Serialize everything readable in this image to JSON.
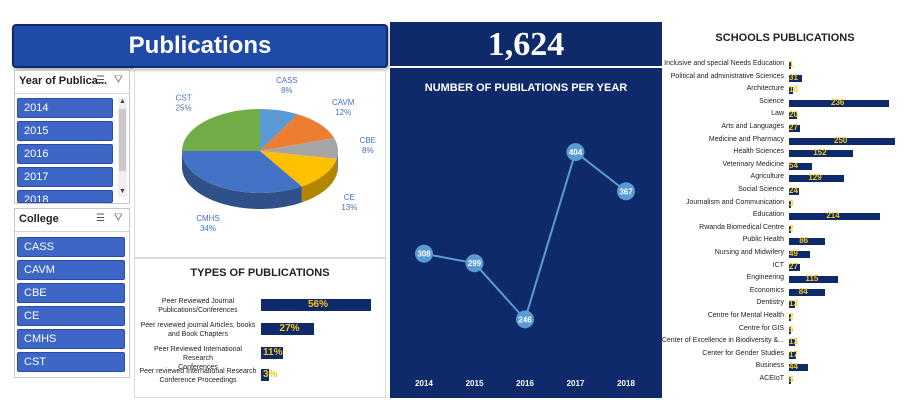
{
  "header": {
    "title": "Publications",
    "total_publications": "1,624"
  },
  "slicers": {
    "year": {
      "title": "Year of Publica...",
      "items": [
        "2014",
        "2015",
        "2016",
        "2017",
        "2018"
      ]
    },
    "college": {
      "title": "College",
      "items": [
        "CASS",
        "CAVM",
        "CBE",
        "CE",
        "CMHS",
        "CST"
      ]
    }
  },
  "pie_chart": {
    "type": "pie",
    "slices": [
      {
        "name": "CASS",
        "pct": 8,
        "label": "8%",
        "color": "#5b9bd5"
      },
      {
        "name": "CAVM",
        "pct": 12,
        "label": "12%",
        "color": "#ed7d31"
      },
      {
        "name": "CBE",
        "pct": 8,
        "label": "8%",
        "color": "#a5a5a5"
      },
      {
        "name": "CE",
        "pct": 13,
        "label": "13%",
        "color": "#ffc000"
      },
      {
        "name": "CMHS",
        "pct": 34,
        "label": "34%",
        "color": "#4472c4"
      },
      {
        "name": "CST",
        "pct": 25,
        "label": "25%",
        "color": "#70ad47"
      }
    ]
  },
  "chart_data": {
    "type": "line",
    "title": "NUMBER OF PUBILATIONS PER YEAR",
    "x": [
      "2014",
      "2015",
      "2016",
      "2017",
      "2018"
    ],
    "values": [
      308,
      299,
      246,
      404,
      367
    ],
    "ylim": [
      200,
      440
    ]
  },
  "types_chart": {
    "type": "bar",
    "title": "TYPES OF PUBLICATIONS",
    "categories": [
      [
        "Peer Reviewed Journal",
        "Publications/Conferences"
      ],
      [
        "Peer reviewed journal Articles, books",
        "and Book Chapters"
      ],
      [
        "Peer Reviewed International Research",
        "Conferences"
      ],
      [
        "Peer reviewed International Research",
        "Conference Proceedings"
      ]
    ],
    "values": [
      56,
      27,
      11,
      3
    ],
    "labels": [
      "56%",
      "27%",
      "11%",
      "3%"
    ]
  },
  "schools_chart": {
    "type": "bar",
    "title": "SCHOOLS PUBLICATIONS",
    "categories": [
      "Inclusive and special Needs Education",
      "Political and administrative Sciences",
      "Architecture",
      "Science",
      "Law",
      "Arts and Languages",
      "Medicine and Pharmacy",
      "Health Sciences",
      "Veterinary Medicine",
      "Agriculture",
      "Social Science",
      "Journalism and Communication",
      "Education",
      "Rwanda Biomedical Centre",
      "Public Health",
      "Nursing and Midwifery",
      "ICT",
      "Engineering",
      "Economics",
      "Dentistry",
      "Centre for Mental Health",
      "Centre for GIS",
      "Center of Excellence in Biodiversity &...",
      "Center for Gender Studies",
      "Business",
      "ACEIoT"
    ],
    "values": [
      1,
      31,
      10,
      236,
      20,
      27,
      250,
      152,
      54,
      129,
      24,
      3,
      214,
      2,
      86,
      49,
      27,
      115,
      84,
      13,
      2,
      5,
      13,
      17,
      44,
      5
    ],
    "labels": [
      "1",
      "31",
      "10",
      "236",
      "20",
      "27",
      "250",
      "152",
      "54",
      "129",
      "24",
      "3",
      "214",
      "2",
      "86",
      "49",
      "27",
      "115",
      "84",
      "13",
      "2",
      "5",
      "13",
      "17",
      "44",
      "5"
    ]
  },
  "colors": {
    "navy": "#0e2a6b",
    "accent_yellow": "#f5c518",
    "line": "#5b9bd5"
  }
}
